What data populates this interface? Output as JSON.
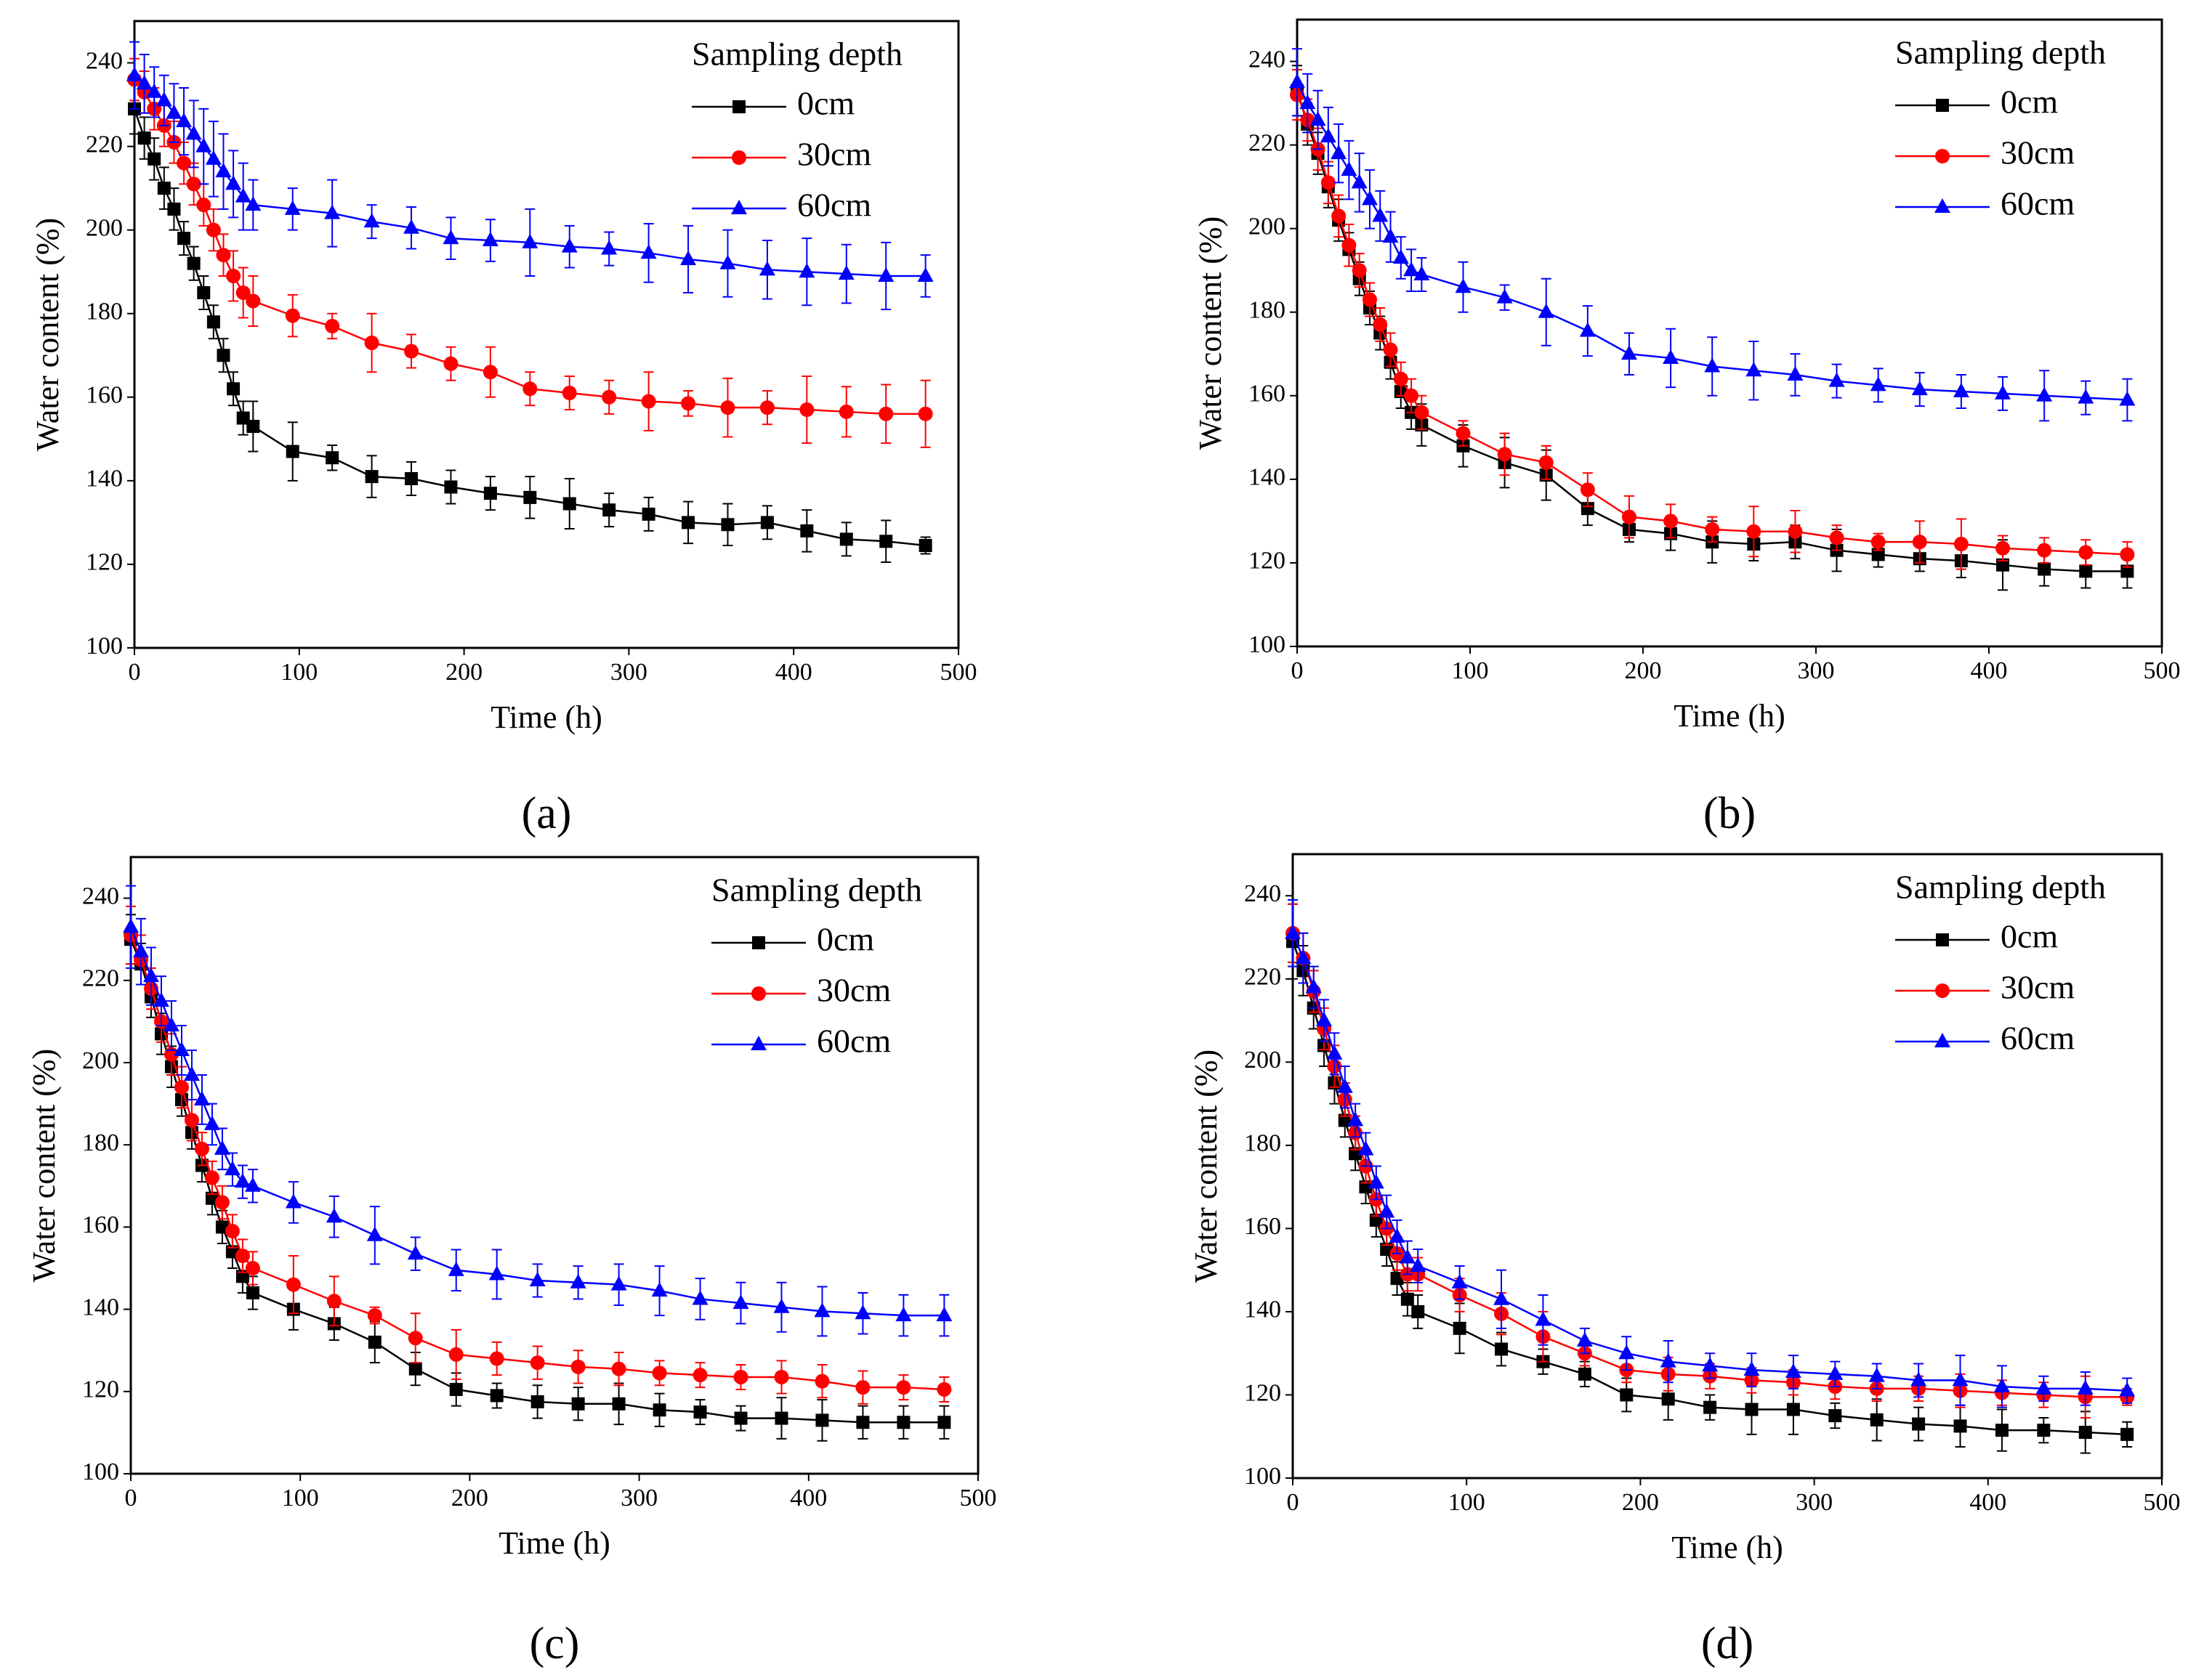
{
  "chart_data": [
    {
      "type": "line",
      "caption": "(a)",
      "xlabel": "Time (h)",
      "ylabel": "Water content (%)",
      "legend_title": "Sampling depth",
      "legend": "upper right",
      "xlim": [
        0,
        500
      ],
      "ylim": [
        100,
        250
      ],
      "xticks": [
        0,
        100,
        200,
        300,
        400,
        500
      ],
      "yticks": [
        100,
        120,
        140,
        160,
        180,
        200,
        220,
        240
      ],
      "x": [
        0,
        6,
        12,
        18,
        24,
        30,
        36,
        42,
        48,
        54,
        60,
        66,
        72,
        96,
        120,
        144,
        168,
        192,
        216,
        240,
        264,
        288,
        312,
        336,
        360,
        384,
        408,
        432,
        456,
        480
      ],
      "series": [
        {
          "name": "0cm",
          "color": "#000000",
          "marker": "square",
          "values": [
            229,
            222,
            217,
            210,
            205,
            198,
            192,
            185,
            178,
            170,
            162,
            155,
            153,
            147,
            145.5,
            141,
            140.5,
            138.5,
            137,
            136,
            134.5,
            133,
            132,
            130,
            129.5,
            130,
            128,
            126,
            125.5,
            124.5
          ],
          "errors": [
            6,
            5,
            5,
            5,
            5,
            4,
            4,
            4,
            4,
            4,
            4,
            4,
            6,
            7,
            3,
            5,
            4,
            4,
            4,
            5,
            6,
            4,
            4,
            5,
            5,
            4,
            5,
            4,
            5,
            2
          ]
        },
        {
          "name": "30cm",
          "color": "#ff0000",
          "marker": "circle",
          "values": [
            236,
            233,
            229,
            225,
            221,
            216,
            211,
            206,
            200,
            194,
            189,
            185,
            183,
            179.5,
            177,
            173,
            171,
            168,
            166,
            162,
            161,
            160,
            159,
            158.5,
            157.5,
            157.5,
            157,
            156.5,
            156,
            156
          ],
          "errors": [
            5,
            5,
            5,
            5,
            5,
            5,
            5,
            5,
            5,
            5,
            6,
            6,
            6,
            5,
            3,
            7,
            4,
            4,
            6,
            4,
            4,
            4,
            7,
            3,
            7,
            4,
            8,
            6,
            7,
            8
          ]
        },
        {
          "name": "60cm",
          "color": "#0000ff",
          "marker": "triangle",
          "values": [
            237,
            235,
            233,
            231,
            228,
            226,
            223,
            220,
            217,
            214,
            211,
            208,
            206,
            205,
            204,
            202,
            200.5,
            198,
            197.5,
            197,
            196,
            195.5,
            194.5,
            193,
            192,
            190.5,
            190,
            189.5,
            189,
            189
          ],
          "errors": [
            8,
            7,
            6,
            6,
            7,
            8,
            8,
            9,
            9,
            9,
            8,
            8,
            6,
            5,
            8,
            4,
            5,
            5,
            5,
            8,
            5,
            4,
            7,
            8,
            8,
            7,
            8,
            7,
            8,
            5
          ]
        }
      ]
    },
    {
      "type": "line",
      "caption": "(b)",
      "xlabel": "Time (h)",
      "ylabel": "Water content (%)",
      "legend_title": "Sampling depth",
      "legend": "upper right",
      "xlim": [
        0,
        500
      ],
      "ylim": [
        100,
        250
      ],
      "xticks": [
        0,
        100,
        200,
        300,
        400,
        500
      ],
      "yticks": [
        100,
        120,
        140,
        160,
        180,
        200,
        220,
        240
      ],
      "x": [
        0,
        6,
        12,
        18,
        24,
        30,
        36,
        42,
        48,
        54,
        60,
        66,
        72,
        96,
        120,
        144,
        168,
        192,
        216,
        240,
        264,
        288,
        312,
        336,
        360,
        384,
        408,
        432,
        456,
        480
      ],
      "series": [
        {
          "name": "0cm",
          "color": "#000000",
          "marker": "square",
          "values": [
            233,
            225,
            218,
            210,
            202,
            195,
            188,
            181,
            175,
            168,
            161,
            156,
            153,
            148,
            144,
            141,
            133,
            128,
            127,
            125,
            124.5,
            125,
            123,
            122,
            121,
            120.5,
            119.5,
            118.5,
            118,
            118
          ],
          "errors": [
            6,
            5,
            5,
            5,
            5,
            4,
            4,
            4,
            4,
            4,
            4,
            4,
            5,
            5,
            6,
            6,
            4,
            3,
            4,
            5,
            4,
            4,
            5,
            3,
            3,
            4,
            6,
            4,
            4,
            4
          ]
        },
        {
          "name": "30cm",
          "color": "#ff0000",
          "marker": "circle",
          "values": [
            232,
            226,
            219,
            211,
            203,
            196,
            190,
            183,
            177,
            171,
            164,
            160,
            156,
            151,
            146,
            144,
            137.5,
            131,
            130,
            128,
            127.5,
            127.5,
            126,
            125,
            125,
            124.5,
            123.5,
            123,
            122.5,
            122
          ],
          "errors": [
            6,
            5,
            5,
            5,
            5,
            5,
            4,
            4,
            4,
            4,
            4,
            4,
            4,
            3,
            5,
            4,
            4,
            5,
            4,
            3,
            6,
            5,
            3,
            2,
            5,
            6,
            3,
            3,
            3,
            3
          ]
        },
        {
          "name": "60cm",
          "color": "#0000ff",
          "marker": "triangle",
          "values": [
            235,
            230,
            226,
            222,
            218,
            214,
            211,
            207,
            203,
            198,
            193,
            190,
            189,
            186,
            183.5,
            180,
            175.5,
            170,
            169,
            167,
            166,
            165,
            163.5,
            162.5,
            161.5,
            161,
            160.5,
            160,
            159.5,
            159
          ],
          "errors": [
            8,
            7,
            7,
            7,
            7,
            7,
            7,
            7,
            6,
            6,
            5,
            5,
            4,
            6,
            3,
            8,
            6,
            5,
            7,
            7,
            7,
            5,
            4,
            4,
            4,
            4,
            4,
            6,
            4,
            5
          ]
        }
      ]
    },
    {
      "type": "line",
      "caption": "(c)",
      "xlabel": "Time (h)",
      "ylabel": "Water content (%)",
      "legend_title": "Sampling depth",
      "legend": "upper right",
      "xlim": [
        0,
        500
      ],
      "ylim": [
        100,
        250
      ],
      "xticks": [
        0,
        100,
        200,
        300,
        400,
        500
      ],
      "yticks": [
        100,
        120,
        140,
        160,
        180,
        200,
        220,
        240
      ],
      "x": [
        0,
        6,
        12,
        18,
        24,
        30,
        36,
        42,
        48,
        54,
        60,
        66,
        72,
        96,
        120,
        144,
        168,
        192,
        216,
        240,
        264,
        288,
        312,
        336,
        360,
        384,
        408,
        432,
        456,
        480
      ],
      "series": [
        {
          "name": "0cm",
          "color": "#000000",
          "marker": "square",
          "values": [
            230,
            224,
            216,
            207,
            199,
            191,
            183,
            175,
            167,
            160,
            154,
            148,
            144,
            140,
            136.5,
            132,
            125.5,
            120.5,
            119,
            117.5,
            117,
            117,
            115.5,
            115,
            113.5,
            113.5,
            113,
            112.5,
            112.5,
            112.5
          ],
          "errors": [
            6,
            5,
            5,
            5,
            5,
            4,
            4,
            4,
            4,
            4,
            4,
            4,
            4,
            5,
            4,
            5,
            4,
            4,
            3,
            4,
            4,
            5,
            4,
            3,
            3,
            5,
            5,
            4,
            4,
            4
          ]
        },
        {
          "name": "30cm",
          "color": "#ff0000",
          "marker": "circle",
          "values": [
            231,
            225,
            218,
            210,
            202,
            194,
            186,
            179,
            172,
            166,
            159,
            153,
            150,
            146,
            142,
            138.5,
            133,
            129,
            128,
            127,
            126,
            125.5,
            124.5,
            124,
            123.5,
            123.5,
            122.5,
            121,
            121,
            120.5
          ],
          "errors": [
            7,
            6,
            5,
            5,
            5,
            5,
            5,
            4,
            4,
            4,
            4,
            4,
            4,
            7,
            6,
            2,
            6,
            6,
            4,
            4,
            4,
            4,
            3,
            3,
            3,
            4,
            4,
            4,
            3,
            3
          ]
        },
        {
          "name": "60cm",
          "color": "#0000ff",
          "marker": "triangle",
          "values": [
            233,
            227,
            221,
            215,
            209,
            203,
            197,
            191,
            185,
            179,
            174,
            171,
            170,
            166,
            162.5,
            158,
            153.5,
            149.5,
            148.5,
            147,
            146.5,
            146,
            144.5,
            142.5,
            141.5,
            140.5,
            139.5,
            139,
            138.5,
            138.5
          ],
          "errors": [
            10,
            8,
            7,
            6,
            6,
            6,
            6,
            6,
            5,
            5,
            4,
            4,
            4,
            5,
            5,
            7,
            4,
            5,
            6,
            4,
            4,
            5,
            6,
            5,
            5,
            6,
            6,
            5,
            5,
            5
          ]
        }
      ]
    },
    {
      "type": "line",
      "caption": "(d)",
      "xlabel": "Time (h)",
      "ylabel": "Water content (%)",
      "legend_title": "Sampling depth",
      "legend": "upper right",
      "xlim": [
        0,
        500
      ],
      "ylim": [
        100,
        250
      ],
      "xticks": [
        0,
        100,
        200,
        300,
        400,
        500
      ],
      "yticks": [
        100,
        120,
        140,
        160,
        180,
        200,
        220,
        240
      ],
      "x": [
        0,
        6,
        12,
        18,
        24,
        30,
        36,
        42,
        48,
        54,
        60,
        66,
        72,
        96,
        120,
        144,
        168,
        192,
        216,
        240,
        264,
        288,
        312,
        336,
        360,
        384,
        408,
        432,
        456,
        480
      ],
      "series": [
        {
          "name": "0cm",
          "color": "#000000",
          "marker": "square",
          "values": [
            229,
            222,
            213,
            204,
            195,
            186,
            178,
            170,
            162,
            155,
            148,
            143,
            140,
            136,
            131,
            128,
            125,
            120,
            119,
            117,
            116.5,
            116.5,
            115,
            114,
            113,
            112.5,
            111.5,
            111.5,
            111,
            110.5
          ],
          "errors": [
            9,
            6,
            5,
            5,
            5,
            4,
            4,
            4,
            4,
            4,
            4,
            4,
            4,
            6,
            4,
            3,
            3,
            4,
            5,
            3,
            6,
            6,
            3,
            5,
            4,
            5,
            5,
            3,
            5,
            3
          ]
        },
        {
          "name": "30cm",
          "color": "#ff0000",
          "marker": "circle",
          "values": [
            231,
            225,
            217,
            208,
            199,
            191,
            183,
            175,
            167,
            160,
            154,
            149,
            149,
            144,
            139.5,
            134,
            130,
            126,
            125,
            124.5,
            123.5,
            123,
            122,
            121.5,
            121.5,
            121,
            120.5,
            120,
            119.5,
            119.5
          ],
          "errors": [
            7,
            6,
            5,
            5,
            5,
            4,
            4,
            4,
            4,
            4,
            4,
            4,
            4,
            4,
            5,
            6,
            3,
            3,
            4,
            3,
            3,
            3,
            3,
            3,
            3,
            4,
            3,
            3,
            5,
            2
          ]
        },
        {
          "name": "60cm",
          "color": "#0000ff",
          "marker": "triangle",
          "values": [
            231,
            225,
            218,
            210,
            202,
            194,
            186,
            179,
            171,
            164,
            158,
            153,
            151,
            147,
            143,
            138,
            133,
            130,
            128,
            127,
            126,
            125.5,
            125,
            124.5,
            123.5,
            123.5,
            122,
            121.5,
            121.5,
            121
          ],
          "errors": [
            8,
            6,
            5,
            5,
            5,
            5,
            4,
            4,
            4,
            4,
            4,
            4,
            4,
            4,
            7,
            6,
            3,
            4,
            5,
            3,
            4,
            4,
            3,
            3,
            4,
            6,
            5,
            3,
            4,
            3
          ]
        }
      ]
    }
  ]
}
